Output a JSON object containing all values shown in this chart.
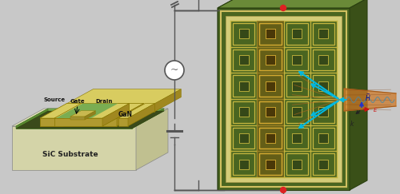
{
  "bg_color": "#c8c8c8",
  "left_panel": {
    "substrate_color": "#e8e8c0",
    "gan_color": "#7aad52",
    "metal_color": "#d4c870",
    "substrate_label": "SiC Substrate",
    "gan_label": "GaN",
    "source_label": "Source",
    "gate_label": "Gate",
    "drain_label": "Drain"
  },
  "right_panel": {
    "board_green": "#4a6520",
    "board_dark": "#354a15",
    "board_light": "#607830",
    "inner_cream": "#d0c878",
    "cell_green": "#4a6520",
    "gold": "#c8b840",
    "gold_line": "#d4c850"
  },
  "circuit": {
    "wire_color": "#555555",
    "battery_color": "#555555",
    "ac_color": "#555555"
  },
  "beam": {
    "orange_color": "#d4803a",
    "orange_dark": "#b06020",
    "cyan_color": "#00b8e0",
    "red_color": "#cc1111",
    "blue_color": "#2233cc",
    "black_color": "#222222"
  },
  "figsize": [
    5.0,
    2.43
  ],
  "dpi": 100
}
